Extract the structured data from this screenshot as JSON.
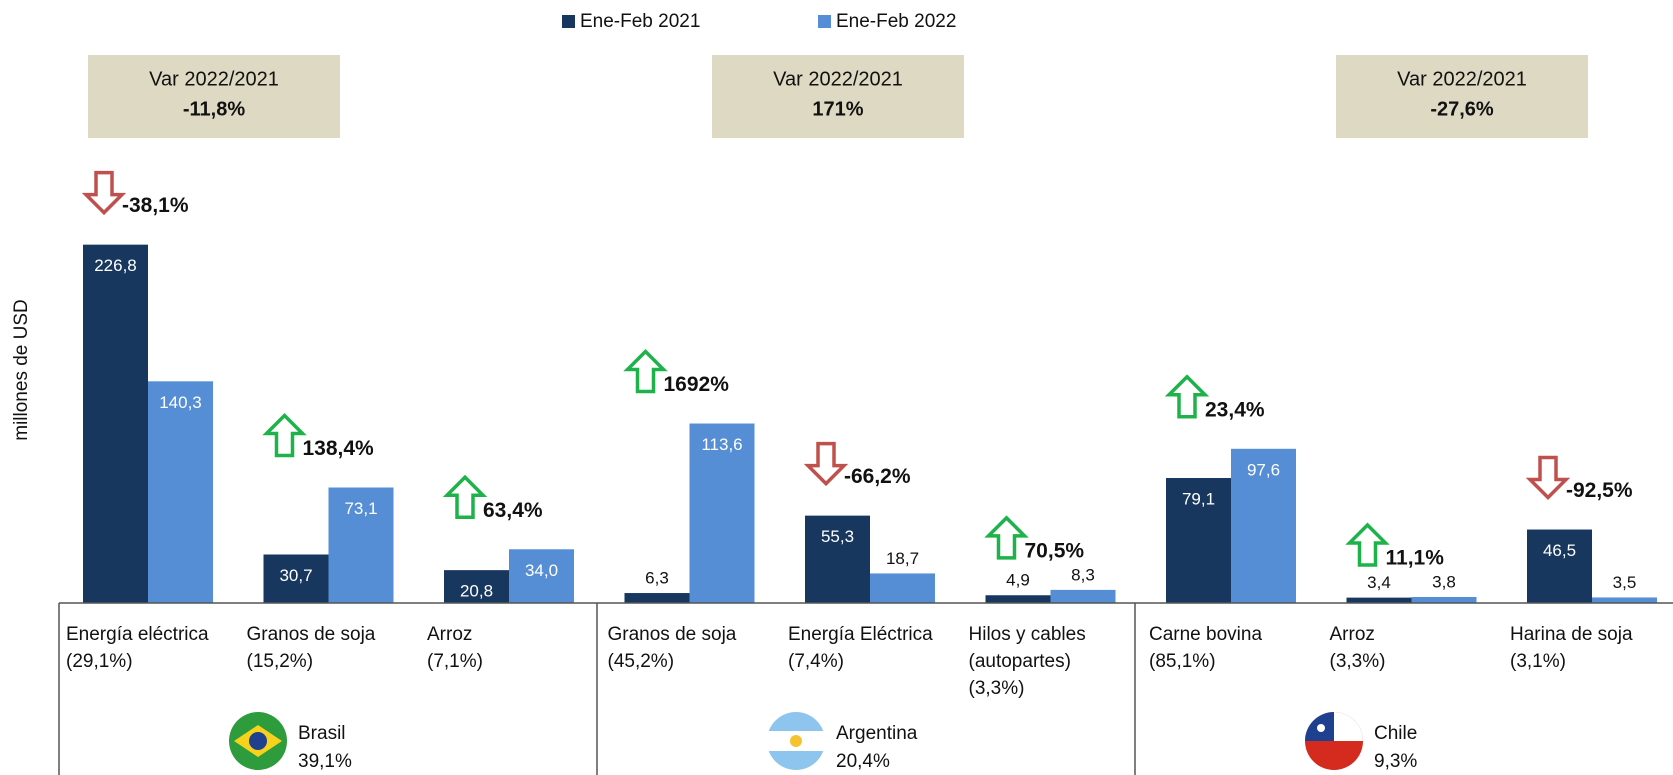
{
  "chart_data": {
    "type": "bar",
    "y_label": "millones de USD",
    "categories": [
      "Energía eléctrica",
      "Granos de soja",
      "Arroz",
      "Granos de soja",
      "Energía Eléctrica",
      "Hilos y cables (autopartes)",
      "Carne bovina",
      "Arroz",
      "Harina de soja"
    ],
    "category_notes": [
      "(29,1%)",
      "(15,2%)",
      "(7,1%)",
      "(45,2%)",
      "(7,4%)",
      "(3,3%)",
      "(85,1%)",
      "(3,3%)",
      "(3,1%)"
    ],
    "series": [
      {
        "name": "Ene-Feb 2021",
        "color": "#17375e",
        "values": [
          226.8,
          30.7,
          20.8,
          6.3,
          55.3,
          4.9,
          79.1,
          3.4,
          46.5
        ],
        "value_labels": [
          "226,8",
          "30,7",
          "20,8",
          "6,3",
          "55,3",
          "4,9",
          "79,1",
          "3,4",
          "46,5"
        ]
      },
      {
        "name": "Ene-Feb 2022",
        "color": "#558ed5",
        "values": [
          140.3,
          73.1,
          34.0,
          113.6,
          18.7,
          8.3,
          97.6,
          3.8,
          3.5
        ],
        "value_labels": [
          "140,3",
          "73,1",
          "34,0",
          "113,6",
          "18,7",
          "8,3",
          "97,6",
          "3,8",
          "3,5"
        ]
      }
    ],
    "changes": [
      -38.1,
      138.4,
      63.4,
      1692,
      -66.2,
      70.5,
      23.4,
      11.1,
      -92.5
    ],
    "change_labels": [
      "-38,1%",
      "138,4%",
      "63,4%",
      "1692%",
      "-66,2%",
      "70,5%",
      "23,4%",
      "11,1%",
      "-92,5%"
    ],
    "up_color": "#1db34a",
    "down_color": "#c0504d",
    "groups": [
      {
        "name": "Brasil",
        "share": "39,1%",
        "variation_title": "Var 2022/2021",
        "variation": "-11,8%"
      },
      {
        "name": "Argentina",
        "share": "20,4%",
        "variation_title": "Var 2022/2021",
        "variation": "171%"
      },
      {
        "name": "Chile",
        "share": "9,3%",
        "variation_title": "Var 2022/2021",
        "variation": "-27,6%"
      }
    ],
    "box_color": "#ddd9c3",
    "ylim": [
      0,
      250
    ]
  }
}
